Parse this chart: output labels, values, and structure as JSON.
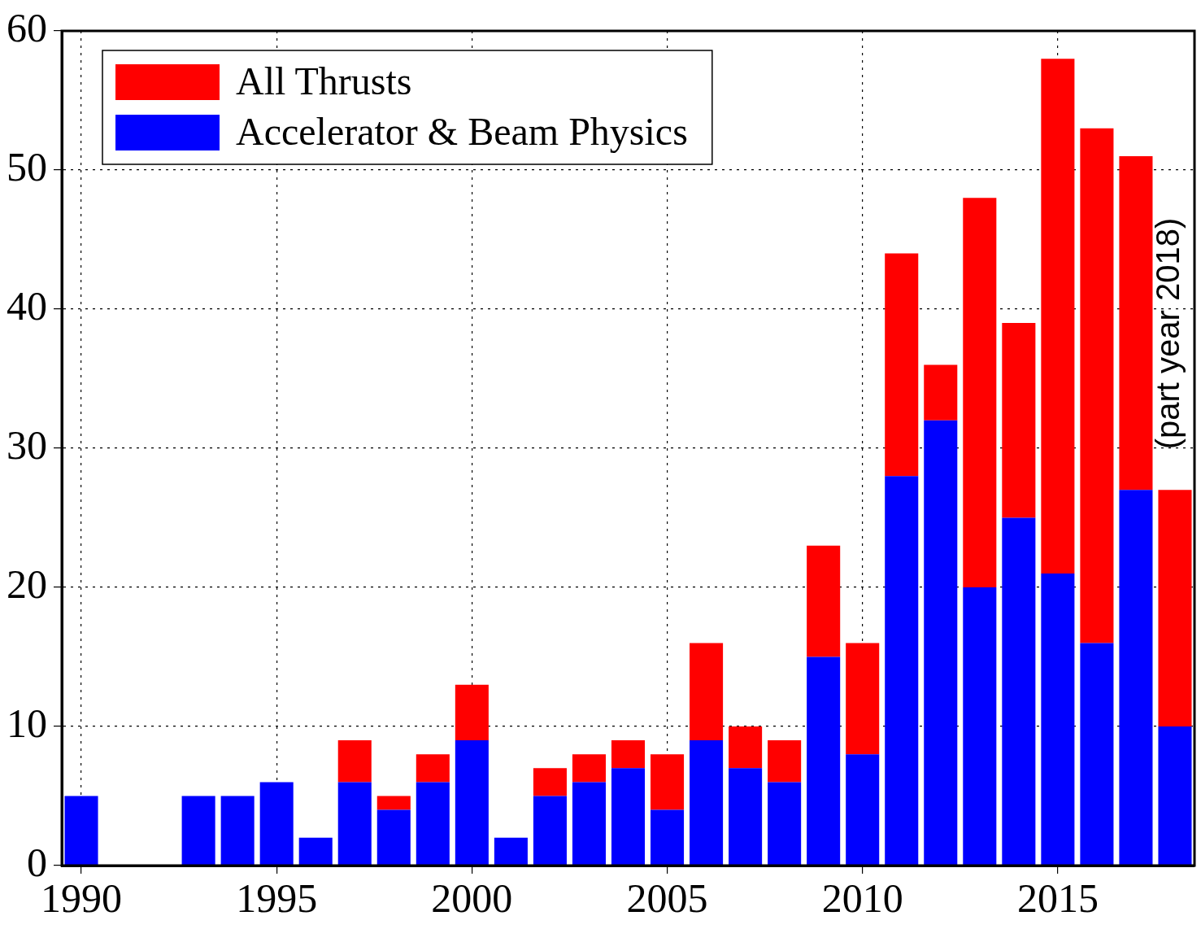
{
  "chart_data": {
    "type": "bar",
    "stacked": true,
    "x": [
      1990,
      1991,
      1992,
      1993,
      1994,
      1995,
      1996,
      1997,
      1998,
      1999,
      2000,
      2001,
      2002,
      2003,
      2004,
      2005,
      2006,
      2007,
      2008,
      2009,
      2010,
      2011,
      2012,
      2013,
      2014,
      2015,
      2016,
      2017,
      2018
    ],
    "series": [
      {
        "name": "Accelerator & Beam Physics",
        "color": "#0000ff",
        "values": [
          5,
          0,
          0,
          5,
          5,
          6,
          2,
          6,
          4,
          6,
          9,
          2,
          5,
          6,
          7,
          4,
          9,
          7,
          6,
          15,
          8,
          28,
          32,
          20,
          25,
          21,
          16,
          27,
          10
        ]
      },
      {
        "name": "All Thrusts",
        "color": "#ff0000",
        "values": [
          0,
          0,
          0,
          0,
          0,
          0,
          0,
          3,
          1,
          2,
          4,
          0,
          2,
          2,
          2,
          4,
          7,
          3,
          3,
          8,
          8,
          16,
          4,
          28,
          14,
          37,
          37,
          24,
          17
        ]
      }
    ],
    "xlim": [
      1989.5,
      2018.5
    ],
    "xticks": [
      1990,
      1995,
      2000,
      2005,
      2010,
      2015
    ],
    "ylim": [
      0,
      60
    ],
    "yticks": [
      0,
      10,
      20,
      30,
      40,
      50,
      60
    ],
    "grid": true,
    "legend": "top left",
    "annotations": [
      {
        "text": "(part year 2018)",
        "x": 2018,
        "y": 27
      }
    ]
  }
}
